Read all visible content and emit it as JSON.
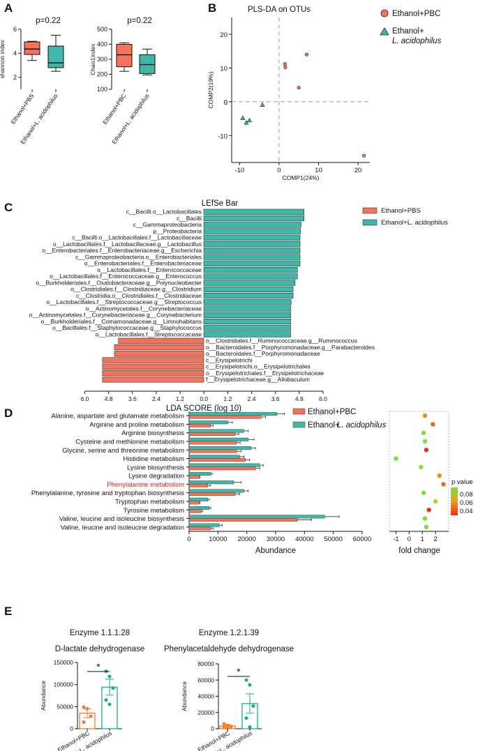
{
  "chart_data": [
    {
      "panel": "A",
      "type": "boxplot",
      "title": "p=0.22",
      "ylabel": "shannon index",
      "ylim": [
        1,
        6
      ],
      "yticks": [
        "2",
        "4",
        "6"
      ],
      "categories": [
        "Ethanol+PBS",
        "Ethanol+L. acidophilus"
      ],
      "colors": [
        "#f4735a",
        "#3fb8a8"
      ],
      "boxes": [
        {
          "min": 3.4,
          "q1": 3.9,
          "median": 4.35,
          "q3": 4.95,
          "max": 5.0
        },
        {
          "min": 2.5,
          "q1": 2.8,
          "median": 3.2,
          "q3": 4.6,
          "max": 5.5
        }
      ]
    },
    {
      "panel": "A",
      "type": "boxplot",
      "title": "p=0.22",
      "ylabel": "Chao1index",
      "ylim": [
        100,
        500
      ],
      "yticks": [
        "100",
        "200",
        "300",
        "400",
        "500"
      ],
      "categories": [
        "Ethanol+PBC",
        "Ethanol+L. acidophilus"
      ],
      "colors": [
        "#f4735a",
        "#3fb8a8"
      ],
      "boxes": [
        {
          "min": 220,
          "q1": 250,
          "median": 330,
          "q3": 400,
          "max": 410
        },
        {
          "min": 195,
          "q1": 205,
          "median": 265,
          "q3": 330,
          "max": 368
        }
      ]
    },
    {
      "panel": "B",
      "type": "scatter",
      "title": "PLS-DA on OTUs",
      "xlabel": "COMP1(24%)",
      "ylabel": "COMP2(19%)",
      "xlim": [
        -12,
        23
      ],
      "ylim": [
        -18,
        25
      ],
      "xticks": [
        "-10",
        "0",
        "10",
        "20"
      ],
      "yticks": [
        "-10",
        "0",
        "10",
        "20"
      ],
      "series": [
        {
          "name": "Ethanol+PBC",
          "marker": "circle",
          "color": "#f4735a",
          "points": [
            [
              1.5,
              11.2
            ],
            [
              1.6,
              10.2
            ],
            [
              7.0,
              14.0
            ],
            [
              5.0,
              4.2
            ],
            [
              21.5,
              -16.0
            ]
          ]
        },
        {
          "name": "Ethanol+",
          "name2": "L. acidophilus",
          "marker": "triangle",
          "color": "#3fb8a8",
          "points": [
            [
              -9.2,
              -4.8
            ],
            [
              -8.3,
              -6.2
            ],
            [
              -7.5,
              -5.5
            ],
            [
              -4.2,
              -0.9
            ]
          ]
        }
      ]
    },
    {
      "panel": "C",
      "type": "bar",
      "orientation": "horizontal-diverging",
      "title": "LEfSe Bar",
      "xlabel": "LDA SCORE (log 10)",
      "xlim": [
        -6,
        6
      ],
      "xticks": [
        "6.0",
        "4.8",
        "3.6",
        "2.4",
        "1.2",
        "0.0",
        "1.2",
        "2.4",
        "3.6",
        "4.8",
        "6.0"
      ],
      "legend": [
        {
          "name": "Ethanol+PBS",
          "color": "#f4735a"
        },
        {
          "name": "Ethanol+L. acidophilus",
          "color": "#3fb8a8"
        }
      ],
      "bars": [
        {
          "label": "c__Bacilli.o__Lactobacillales",
          "value": 5.05,
          "group": 1
        },
        {
          "label": "c__Bacilli",
          "value": 5.05,
          "group": 1
        },
        {
          "label": "c__Gammaproteobacteria",
          "value": 4.9,
          "group": 1
        },
        {
          "label": "p__Proteobacteria",
          "value": 4.88,
          "group": 1
        },
        {
          "label": "c__Bacilli.o__Lactobacillales.f__Lactobacillaceae",
          "value": 4.85,
          "group": 1
        },
        {
          "label": "o__Lactobacillales.f__Lactobacillaceae.g__Lactobacillus",
          "value": 4.85,
          "group": 1
        },
        {
          "label": "o__Enterobacteriales.f__Enterobacteriaceae.g__Escherichia",
          "value": 4.85,
          "group": 1
        },
        {
          "label": "c__Gammaproteobacteria.o__Enterobacteriales",
          "value": 4.85,
          "group": 1
        },
        {
          "label": "o__Enterobacteriales.f__Enterobacteriaceae",
          "value": 4.85,
          "group": 1
        },
        {
          "label": "o__Lactobacillales.f__Enterococcaceae",
          "value": 4.72,
          "group": 1
        },
        {
          "label": "o__Lactobacillales.f__Enterococcaceae.g__Enterococcus",
          "value": 4.72,
          "group": 1
        },
        {
          "label": "o__Burkholderiales.f__Oxalobacteraceae.g__Polynucleobacter",
          "value": 4.6,
          "group": 1
        },
        {
          "label": "o__Clostridiales.f__Clostridiaceae.g__Clostridium",
          "value": 4.5,
          "group": 1
        },
        {
          "label": "c__Clostridia.o__Clostridiales.f__Clostridiaceae",
          "value": 4.5,
          "group": 1
        },
        {
          "label": "o__Lactobacillales.f__Streptococcaceae.g__Streptococcus",
          "value": 4.4,
          "group": 1
        },
        {
          "label": "o__Actinomycetales.f__Corynebacteriaceae",
          "value": 4.38,
          "group": 1
        },
        {
          "label": "o__Actinomycetales.f__Corynebacteriaceae.g__Corynebacterium",
          "value": 4.38,
          "group": 1
        },
        {
          "label": "o__Burkholderiales.f__Comamonadaceae.g__Limnohabitans",
          "value": 4.38,
          "group": 1
        },
        {
          "label": "o__Bacillales.f__Staphylococcaceae.g__Staphylococcus",
          "value": 4.38,
          "group": 1
        },
        {
          "label": "o__Lactobacillales.f__Streptococcaceae",
          "value": 4.38,
          "group": 1
        },
        {
          "label": "o__Clostridiales.f__Ruminococcaceae.g__Ruminococcus",
          "value": -4.3,
          "group": 0
        },
        {
          "label": "o__Bacteroidales.f__Porphyromonadaceae.g__Parabacteroides",
          "value": -4.5,
          "group": 0
        },
        {
          "label": "o__Bacteroidales.f__Porphyromonadaceae",
          "value": -4.5,
          "group": 0
        },
        {
          "label": "c__Erysipelotrichi",
          "value": -5.1,
          "group": 0
        },
        {
          "label": "c__Erysipelotrichi.o__Erysipelotrichales",
          "value": -5.1,
          "group": 0
        },
        {
          "label": "o__Erysipelotrichales.f__Erysipelotrichaceae",
          "value": -5.1,
          "group": 0
        },
        {
          "label": "f__Erysipelotrichaceae.g__Allobaculum",
          "value": -5.1,
          "group": 0
        }
      ]
    },
    {
      "panel": "D",
      "type": "bar",
      "orientation": "horizontal-grouped",
      "xlabel": "Abundance",
      "xlim": [
        0,
        60000
      ],
      "xticks": [
        "0",
        "10000",
        "20000",
        "30000",
        "40000",
        "50000",
        "60000"
      ],
      "highlight_color": "#e02020",
      "series": [
        {
          "name": "Ethanol+PBC",
          "color": "#f4735a",
          "values": [
            25000,
            7500,
            16000,
            16500,
            16500,
            19500,
            23000,
            3500,
            6500,
            16000,
            3500,
            4200,
            37500,
            7500
          ],
          "errors": [
            1500,
            800,
            1200,
            1200,
            1500,
            1500,
            1500,
            300,
            800,
            1500,
            300,
            400,
            5000,
            800
          ]
        },
        {
          "name": "Ethanol+",
          "name2": "L. acidophilus",
          "color": "#3fb8a8",
          "values": [
            30500,
            13500,
            19000,
            20500,
            21500,
            17500,
            24500,
            7500,
            15500,
            19000,
            6500,
            7000,
            47000,
            10500
          ],
          "errors": [
            2500,
            1500,
            1500,
            2000,
            1500,
            1500,
            1200,
            500,
            2500,
            1500,
            500,
            500,
            5000,
            1000
          ]
        }
      ],
      "categories": [
        "Alanine, aspartate and glutamate metabolism",
        "Arginine and proline metabolism",
        "Arginine biosynthesis",
        "Cysteine and methionine metabolism",
        "Glycine, serine and threonine metabolism",
        "Histidine metabolism",
        "Lysine biosynthesis",
        "Lysine degradation",
        "Phenylalanine metabolism",
        "Phenylalanine, tyrosine and tryptophan biosynthesis",
        "Tryptophan metabolism",
        "Tyrosine metabolism",
        "Valine, leucine and isoleucine biosynthesis",
        "Valine, leucine and isoleucine degradation"
      ],
      "highlight_index": 8
    },
    {
      "panel": "D",
      "type": "scatter",
      "xlabel": "fold change",
      "xlim": [
        -1.5,
        3
      ],
      "xticks": [
        "-1",
        "0",
        "1",
        "2"
      ],
      "colorbar_title": "p value",
      "colorbar_ticks": [
        "0.08",
        "0.06",
        "0.04"
      ],
      "fold_change": [
        1.2,
        1.8,
        1.1,
        1.2,
        1.3,
        -1.0,
        0.9,
        2.3,
        2.6,
        1.1,
        2.0,
        1.5,
        1.2,
        1.3
      ],
      "p_values": [
        0.06,
        0.05,
        0.09,
        0.09,
        0.03,
        0.09,
        0.09,
        0.06,
        0.05,
        0.09,
        0.07,
        0.03,
        0.09,
        0.09
      ]
    },
    {
      "panel": "E",
      "type": "bar",
      "title": "Enzyme 1.1.1.28",
      "subtitle": "D-lactate dehydrogenase",
      "ylabel": "Abundance",
      "ylim": [
        0,
        150000
      ],
      "yticks": [
        "0",
        "50000",
        "100000",
        "150000"
      ],
      "categories": [
        "Ethanol+PBC",
        "Ethanol+L. acidophilus"
      ],
      "colors": [
        "#f47c2a",
        "#1aab8a"
      ],
      "means": [
        35000,
        94000
      ],
      "sems": [
        10000,
        18000
      ],
      "points": [
        [
          49000,
          45000,
          28000,
          15000
        ],
        [
          130000,
          118000,
          92000,
          65000,
          55000
        ]
      ],
      "significance": "*"
    },
    {
      "panel": "E",
      "type": "bar",
      "title": "Enzyme 1.2.1.39",
      "subtitle": "Phenylacetaldehyde dehydrogenase",
      "ylabel": "Abundance",
      "ylim": [
        0,
        80000
      ],
      "yticks": [
        "0",
        "20000",
        "40000",
        "60000",
        "80000"
      ],
      "categories": [
        "Ethanol+PBC",
        "Ethanol+L. acidophilus"
      ],
      "colors": [
        "#f47c2a",
        "#1aab8a"
      ],
      "means": [
        3500,
        31000
      ],
      "sems": [
        1500,
        12000
      ],
      "points": [
        [
          6000,
          4000,
          2500,
          1500,
          800
        ],
        [
          60000,
          54000,
          28000,
          13000,
          2000
        ]
      ],
      "significance": "*"
    }
  ]
}
